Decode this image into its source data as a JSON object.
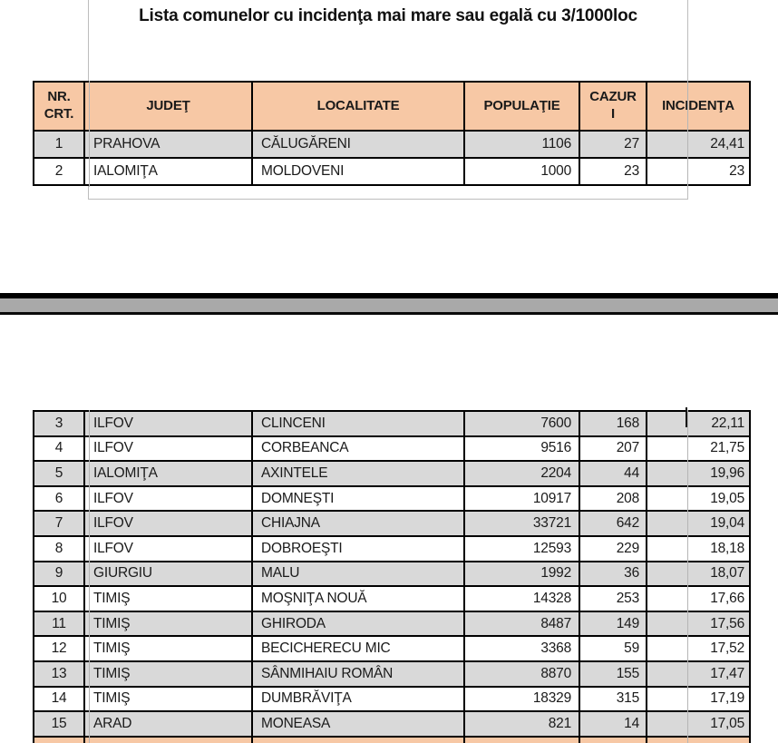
{
  "title": "Lista comunelor cu incidenţa mai mare sau egală cu 3/1000loc",
  "table": {
    "headers": [
      "NR.\nCRT.",
      "JUDEŢ",
      "LOCALITATE",
      "POPULAŢIE",
      "CAZUR\nI",
      "INCIDENŢA"
    ],
    "page1_rows": [
      [
        "1",
        "PRAHOVA",
        "CĂLUGĂRENI",
        "1106",
        "27",
        "24,41"
      ],
      [
        "2",
        "IALOMIŢA",
        "MOLDOVENI",
        "1000",
        "23",
        "23"
      ]
    ],
    "page2_rows": [
      [
        "3",
        "ILFOV",
        "CLINCENI",
        "7600",
        "168",
        "22,11"
      ],
      [
        "4",
        "ILFOV",
        "CORBEANCA",
        "9516",
        "207",
        "21,75"
      ],
      [
        "5",
        "IALOMIŢA",
        "AXINTELE",
        "2204",
        "44",
        "19,96"
      ],
      [
        "6",
        "ILFOV",
        "DOMNEŞTI",
        "10917",
        "208",
        "19,05"
      ],
      [
        "7",
        "ILFOV",
        "CHIAJNA",
        "33721",
        "642",
        "19,04"
      ],
      [
        "8",
        "ILFOV",
        "DOBROEŞTI",
        "12593",
        "229",
        "18,18"
      ],
      [
        "9",
        "GIURGIU",
        "MALU",
        "1992",
        "36",
        "18,07"
      ],
      [
        "10",
        "TIMIŞ",
        "MOŞNIŢA NOUĂ",
        "14328",
        "253",
        "17,66"
      ],
      [
        "11",
        "TIMIŞ",
        "GHIRODA",
        "8487",
        "149",
        "17,56"
      ],
      [
        "12",
        "TIMIŞ",
        "BECICHERECU MIC",
        "3368",
        "59",
        "17,52"
      ],
      [
        "13",
        "TIMIŞ",
        "SÂNMIHAIU ROMÂN",
        "8870",
        "155",
        "17,47"
      ],
      [
        "14",
        "TIMIŞ",
        "DUMBRĂVIŢA",
        "18329",
        "315",
        "17,19"
      ],
      [
        "15",
        "ARAD",
        "MONEASA",
        "821",
        "14",
        "17,05"
      ]
    ]
  },
  "colors": {
    "header_bg": "#f7c8a5",
    "alt_row_bg": "#d9d9d9",
    "table_border": "#000000",
    "page_break_bar": "#000000",
    "page_break_fill": "#a9a9a9",
    "faint_line": "#b5b5b5"
  }
}
